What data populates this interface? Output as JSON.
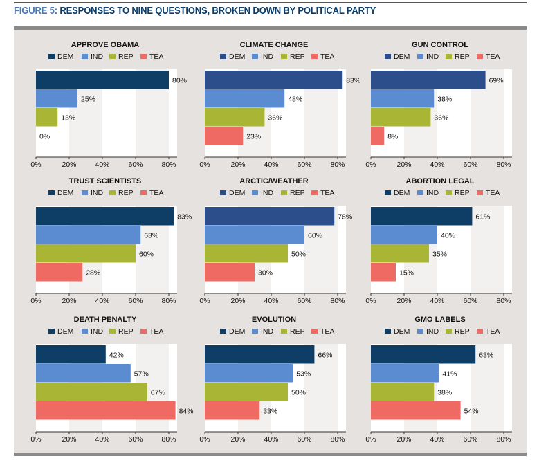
{
  "figure": {
    "label": "FIGURE 5:",
    "title": "RESPONSES TO NINE QUESTIONS, BROKEN DOWN BY POLITICAL PARTY"
  },
  "colors": {
    "DEM_dark": "#0e3e66",
    "DEM_navy": "#2c4f8c",
    "IND": "#5b8bd0",
    "REP": "#a9b534",
    "TEA": "#ee6a63",
    "panel_bg": "#e6e2df",
    "grid_band": "#f3f1ef"
  },
  "chart_data": [
    {
      "type": "bar",
      "orientation": "horizontal",
      "title": "APPROVE OBAMA",
      "categories": [
        "DEM",
        "IND",
        "REP",
        "TEA"
      ],
      "values": [
        80,
        25,
        13,
        0
      ],
      "labels": [
        "80%",
        "25%",
        "13%",
        "0%"
      ],
      "xlim": [
        0,
        85
      ],
      "xticks": [
        "0%",
        "20%",
        "40%",
        "60%",
        "80%"
      ],
      "dem_color": "DEM_dark"
    },
    {
      "type": "bar",
      "orientation": "horizontal",
      "title": "CLIMATE CHANGE",
      "categories": [
        "DEM",
        "IND",
        "REP",
        "TEA"
      ],
      "values": [
        83,
        48,
        36,
        23
      ],
      "labels": [
        "83%",
        "48%",
        "36%",
        "23%"
      ],
      "xlim": [
        0,
        85
      ],
      "xticks": [
        "0%",
        "20%",
        "40%",
        "60%",
        "80%"
      ],
      "dem_color": "DEM_navy"
    },
    {
      "type": "bar",
      "orientation": "horizontal",
      "title": "GUN CONTROL",
      "categories": [
        "DEM",
        "IND",
        "REP",
        "TEA"
      ],
      "values": [
        69,
        38,
        36,
        8
      ],
      "labels": [
        "69%",
        "38%",
        "36%",
        "8%"
      ],
      "xlim": [
        0,
        85
      ],
      "xticks": [
        "0%",
        "20%",
        "40%",
        "60%",
        "80%"
      ],
      "dem_color": "DEM_navy"
    },
    {
      "type": "bar",
      "orientation": "horizontal",
      "title": "TRUST SCIENTISTS",
      "categories": [
        "DEM",
        "IND",
        "REP",
        "TEA"
      ],
      "values": [
        83,
        63,
        60,
        28
      ],
      "labels": [
        "83%",
        "63%",
        "60%",
        "28%"
      ],
      "xlim": [
        0,
        85
      ],
      "xticks": [
        "0%",
        "20%",
        "40%",
        "60%",
        "80%"
      ],
      "dem_color": "DEM_dark"
    },
    {
      "type": "bar",
      "orientation": "horizontal",
      "title": "ARCTIC/WEATHER",
      "categories": [
        "DEM",
        "IND",
        "REP",
        "TEA"
      ],
      "values": [
        78,
        60,
        50,
        30
      ],
      "labels": [
        "78%",
        "60%",
        "50%",
        "30%"
      ],
      "xlim": [
        0,
        85
      ],
      "xticks": [
        "0%",
        "20%",
        "40%",
        "60%",
        "80%"
      ],
      "dem_color": "DEM_navy"
    },
    {
      "type": "bar",
      "orientation": "horizontal",
      "title": "ABORTION LEGAL",
      "categories": [
        "DEM",
        "IND",
        "REP",
        "TEA"
      ],
      "values": [
        61,
        40,
        35,
        15
      ],
      "labels": [
        "61%",
        "40%",
        "35%",
        "15%"
      ],
      "xlim": [
        0,
        85
      ],
      "xticks": [
        "0%",
        "20%",
        "40%",
        "60%",
        "80%"
      ],
      "dem_color": "DEM_dark"
    },
    {
      "type": "bar",
      "orientation": "horizontal",
      "title": "DEATH PENALTY",
      "categories": [
        "DEM",
        "IND",
        "REP",
        "TEA"
      ],
      "values": [
        42,
        57,
        67,
        84
      ],
      "labels": [
        "42%",
        "57%",
        "67%",
        "84%"
      ],
      "xlim": [
        0,
        85
      ],
      "xticks": [
        "0%",
        "20%",
        "40%",
        "60%",
        "80%"
      ],
      "dem_color": "DEM_dark"
    },
    {
      "type": "bar",
      "orientation": "horizontal",
      "title": "EVOLUTION",
      "categories": [
        "DEM",
        "IND",
        "REP",
        "TEA"
      ],
      "values": [
        66,
        53,
        50,
        33
      ],
      "labels": [
        "66%",
        "53%",
        "50%",
        "33%"
      ],
      "xlim": [
        0,
        85
      ],
      "xticks": [
        "0%",
        "20%",
        "40%",
        "60%",
        "80%"
      ],
      "dem_color": "DEM_dark"
    },
    {
      "type": "bar",
      "orientation": "horizontal",
      "title": "GMO LABELS",
      "categories": [
        "DEM",
        "IND",
        "REP",
        "TEA"
      ],
      "values": [
        63,
        41,
        38,
        54
      ],
      "labels": [
        "63%",
        "41%",
        "38%",
        "54%"
      ],
      "xlim": [
        0,
        85
      ],
      "xticks": [
        "0%",
        "20%",
        "40%",
        "60%",
        "80%"
      ],
      "dem_color": "DEM_dark"
    }
  ],
  "legend": [
    "DEM",
    "IND",
    "REP",
    "TEA"
  ]
}
